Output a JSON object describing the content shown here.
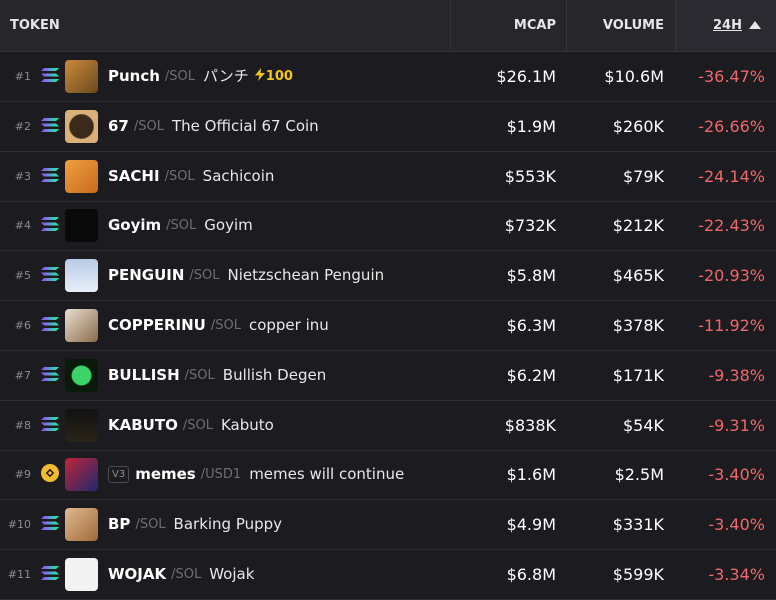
{
  "header": {
    "token": "TOKEN",
    "mcap": "MCAP",
    "volume": "VOLUME",
    "change": "24H"
  },
  "rows": [
    {
      "rank": "#1",
      "symbol": "Punch",
      "quote": "/SOL",
      "name": "パンチ",
      "boost": "100",
      "mcap": "$26.1M",
      "volume": "$10.6M",
      "change": "-36.47%"
    },
    {
      "rank": "#2",
      "symbol": "67",
      "quote": "/SOL",
      "name": "The Official 67 Coin",
      "mcap": "$1.9M",
      "volume": "$260K",
      "change": "-26.66%"
    },
    {
      "rank": "#3",
      "symbol": "SACHI",
      "quote": "/SOL",
      "name": "Sachicoin",
      "mcap": "$553K",
      "volume": "$79K",
      "change": "-24.14%"
    },
    {
      "rank": "#4",
      "symbol": "Goyim",
      "quote": "/SOL",
      "name": "Goyim",
      "mcap": "$732K",
      "volume": "$212K",
      "change": "-22.43%"
    },
    {
      "rank": "#5",
      "symbol": "PENGUIN",
      "quote": "/SOL",
      "name": "Nietzschean Penguin",
      "mcap": "$5.8M",
      "volume": "$465K",
      "change": "-20.93%"
    },
    {
      "rank": "#6",
      "symbol": "COPPERINU",
      "quote": "/SOL",
      "name": "copper inu",
      "mcap": "$6.3M",
      "volume": "$378K",
      "change": "-11.92%"
    },
    {
      "rank": "#7",
      "symbol": "BULLISH",
      "quote": "/SOL",
      "name": "Bullish Degen",
      "mcap": "$6.2M",
      "volume": "$171K",
      "change": "-9.38%"
    },
    {
      "rank": "#8",
      "symbol": "KABUTO",
      "quote": "/SOL",
      "name": "Kabuto",
      "mcap": "$838K",
      "volume": "$54K",
      "change": "-9.31%"
    },
    {
      "rank": "#9",
      "badge": "V3",
      "symbol": "memes",
      "quote": "/USD1",
      "name": "memes will continue",
      "mcap": "$1.6M",
      "volume": "$2.5M",
      "change": "-3.40%"
    },
    {
      "rank": "#10",
      "symbol": "BP",
      "quote": "/SOL",
      "name": "Barking Puppy",
      "mcap": "$4.9M",
      "volume": "$331K",
      "change": "-3.40%"
    },
    {
      "rank": "#11",
      "symbol": "WOJAK",
      "quote": "/SOL",
      "name": "Wojak",
      "mcap": "$6.8M",
      "volume": "$599K",
      "change": "-3.34%"
    }
  ]
}
